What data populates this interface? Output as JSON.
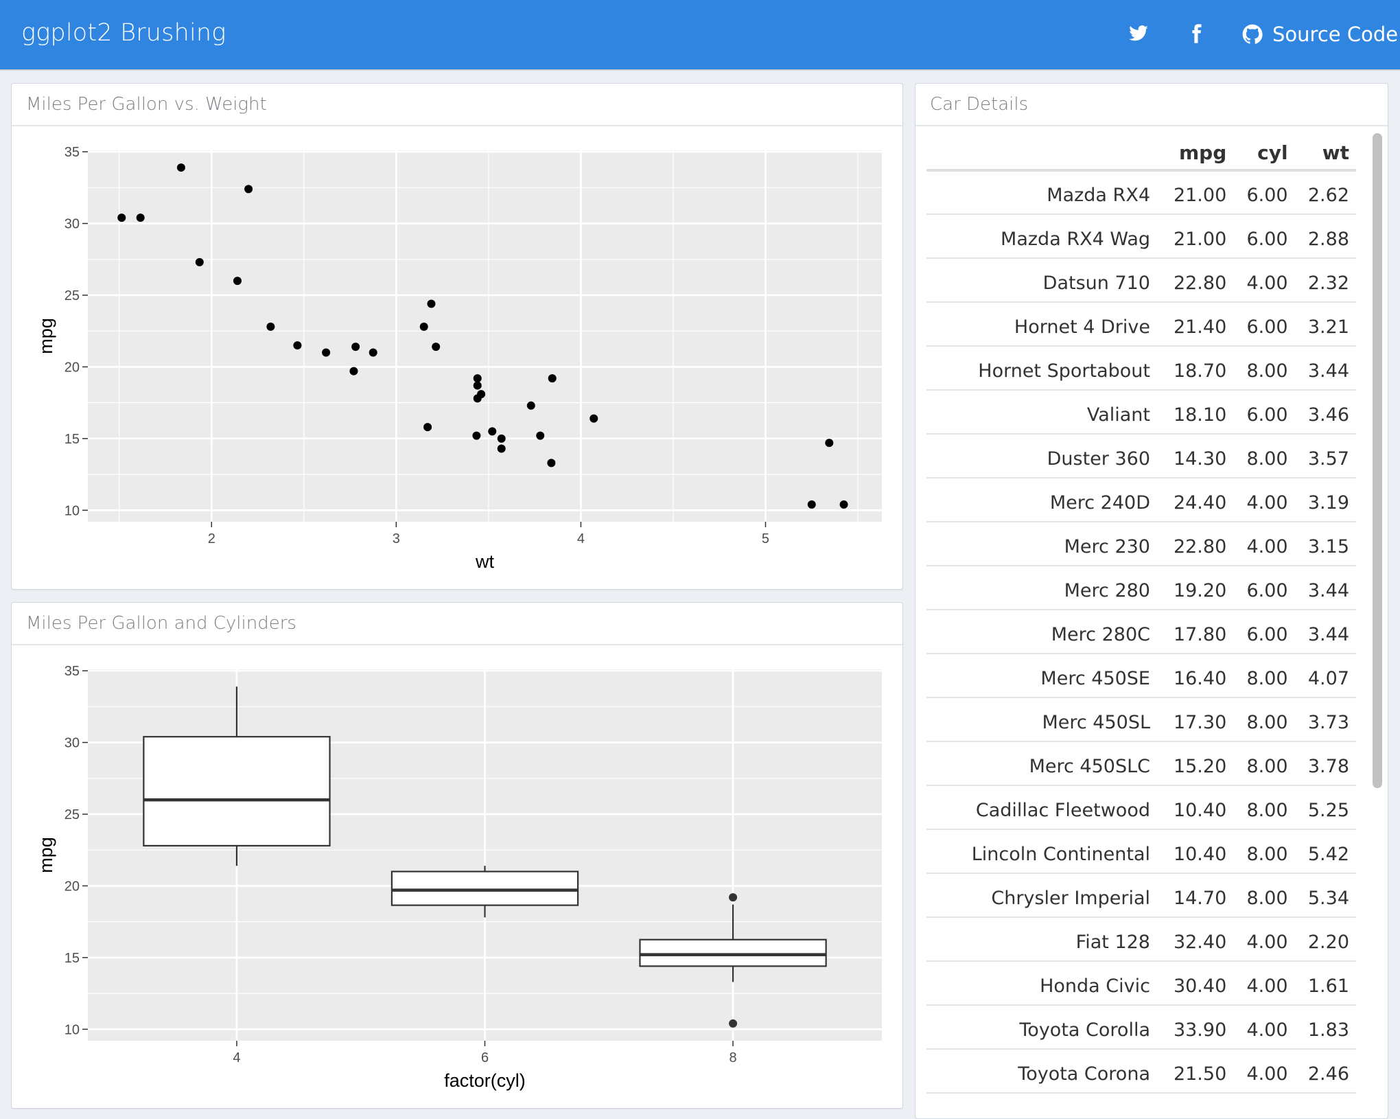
{
  "navbar": {
    "title": "ggplot2 Brushing",
    "twitter_icon": "twitter-icon",
    "facebook_icon": "facebook-icon",
    "github_icon": "github-icon",
    "source_label": "Source Code",
    "background": "#3085e0"
  },
  "scatter_card": {
    "title": "Miles Per Gallon vs. Weight"
  },
  "box_card": {
    "title": "Miles Per Gallon and Cylinders"
  },
  "table_card": {
    "title": "Car Details",
    "columns": [
      "",
      "mpg",
      "cyl",
      "wt"
    ],
    "rows": [
      [
        "Mazda RX4",
        "21.00",
        "6.00",
        "2.62"
      ],
      [
        "Mazda RX4 Wag",
        "21.00",
        "6.00",
        "2.88"
      ],
      [
        "Datsun 710",
        "22.80",
        "4.00",
        "2.32"
      ],
      [
        "Hornet 4 Drive",
        "21.40",
        "6.00",
        "3.21"
      ],
      [
        "Hornet Sportabout",
        "18.70",
        "8.00",
        "3.44"
      ],
      [
        "Valiant",
        "18.10",
        "6.00",
        "3.46"
      ],
      [
        "Duster 360",
        "14.30",
        "8.00",
        "3.57"
      ],
      [
        "Merc 240D",
        "24.40",
        "4.00",
        "3.19"
      ],
      [
        "Merc 230",
        "22.80",
        "4.00",
        "3.15"
      ],
      [
        "Merc 280",
        "19.20",
        "6.00",
        "3.44"
      ],
      [
        "Merc 280C",
        "17.80",
        "6.00",
        "3.44"
      ],
      [
        "Merc 450SE",
        "16.40",
        "8.00",
        "4.07"
      ],
      [
        "Merc 450SL",
        "17.30",
        "8.00",
        "3.73"
      ],
      [
        "Merc 450SLC",
        "15.20",
        "8.00",
        "3.78"
      ],
      [
        "Cadillac Fleetwood",
        "10.40",
        "8.00",
        "5.25"
      ],
      [
        "Lincoln Continental",
        "10.40",
        "8.00",
        "5.42"
      ],
      [
        "Chrysler Imperial",
        "14.70",
        "8.00",
        "5.34"
      ],
      [
        "Fiat 128",
        "32.40",
        "4.00",
        "2.20"
      ],
      [
        "Honda Civic",
        "30.40",
        "4.00",
        "1.61"
      ],
      [
        "Toyota Corolla",
        "33.90",
        "4.00",
        "1.83"
      ],
      [
        "Toyota Corona",
        "21.50",
        "4.00",
        "2.46"
      ]
    ]
  },
  "chart_data": [
    {
      "type": "scatter",
      "title": "",
      "xlabel": "wt",
      "ylabel": "mpg",
      "xlim": [
        1.33,
        5.63
      ],
      "ylim": [
        9.2,
        35.1
      ],
      "xticks": [
        2,
        3,
        4,
        5
      ],
      "yticks": [
        10,
        15,
        20,
        25,
        30,
        35
      ],
      "grid": true,
      "panel_color": "#ebebeb",
      "point_color": "#000000",
      "points": [
        [
          2.62,
          21.0
        ],
        [
          2.875,
          21.0
        ],
        [
          2.32,
          22.8
        ],
        [
          3.215,
          21.4
        ],
        [
          3.44,
          18.7
        ],
        [
          3.46,
          18.1
        ],
        [
          3.57,
          14.3
        ],
        [
          3.19,
          24.4
        ],
        [
          3.15,
          22.8
        ],
        [
          3.44,
          19.2
        ],
        [
          3.44,
          17.8
        ],
        [
          4.07,
          16.4
        ],
        [
          3.73,
          17.3
        ],
        [
          3.78,
          15.2
        ],
        [
          5.25,
          10.4
        ],
        [
          5.424,
          10.4
        ],
        [
          5.345,
          14.7
        ],
        [
          2.2,
          32.4
        ],
        [
          1.615,
          30.4
        ],
        [
          1.835,
          33.9
        ],
        [
          2.465,
          21.5
        ],
        [
          3.52,
          15.5
        ],
        [
          3.435,
          15.2
        ],
        [
          3.84,
          13.3
        ],
        [
          3.845,
          19.2
        ],
        [
          1.935,
          27.3
        ],
        [
          2.14,
          26.0
        ],
        [
          1.513,
          30.4
        ],
        [
          3.17,
          15.8
        ],
        [
          2.77,
          19.7
        ],
        [
          3.57,
          15.0
        ],
        [
          2.78,
          21.4
        ]
      ]
    },
    {
      "type": "box",
      "title": "",
      "xlabel": "factor(cyl)",
      "ylabel": "mpg",
      "ylim": [
        9.2,
        35.1
      ],
      "yticks": [
        10,
        15,
        20,
        25,
        30,
        35
      ],
      "categories": [
        "4",
        "6",
        "8"
      ],
      "grid": true,
      "panel_color": "#ebebeb",
      "boxes": [
        {
          "category": "4",
          "whisker_low": 21.4,
          "q1": 22.8,
          "median": 26.0,
          "q3": 30.4,
          "whisker_high": 33.9,
          "outliers": []
        },
        {
          "category": "6",
          "whisker_low": 17.8,
          "q1": 18.65,
          "median": 19.7,
          "q3": 21.0,
          "whisker_high": 21.4,
          "outliers": []
        },
        {
          "category": "8",
          "whisker_low": 13.3,
          "q1": 14.4,
          "median": 15.2,
          "q3": 16.25,
          "whisker_high": 18.7,
          "outliers": [
            19.2,
            10.4
          ]
        }
      ]
    }
  ]
}
